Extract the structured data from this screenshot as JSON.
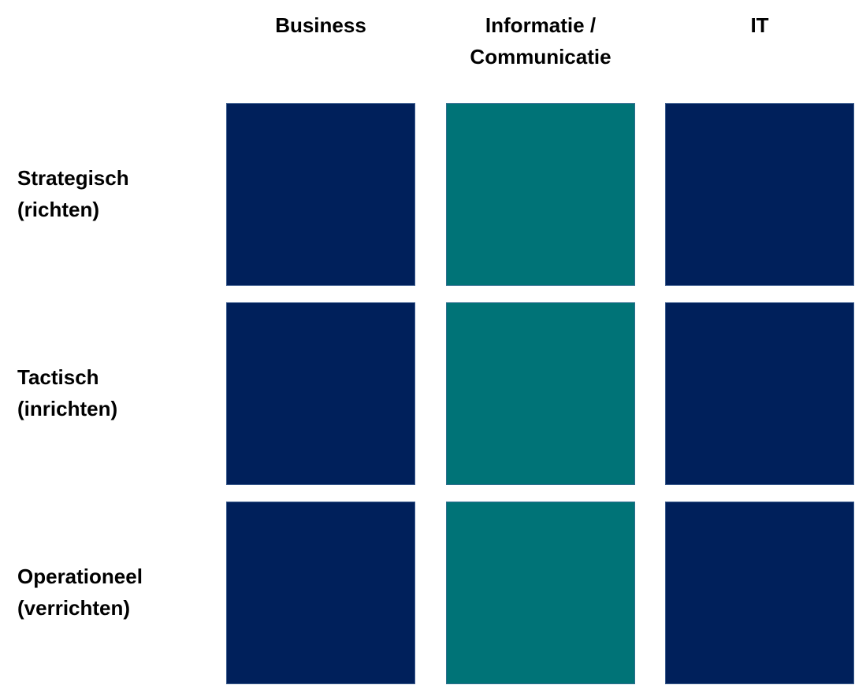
{
  "columns": [
    {
      "lines": [
        "Business"
      ]
    },
    {
      "lines": [
        "Informatie /",
        "Communicatie"
      ]
    },
    {
      "lines": [
        "IT"
      ]
    }
  ],
  "rows": [
    {
      "lines": [
        "Strategisch",
        "(richten)"
      ]
    },
    {
      "lines": [
        "Tactisch",
        "(inrichten)"
      ]
    },
    {
      "lines": [
        "Operationeel",
        "(verrichten)"
      ]
    }
  ]
}
